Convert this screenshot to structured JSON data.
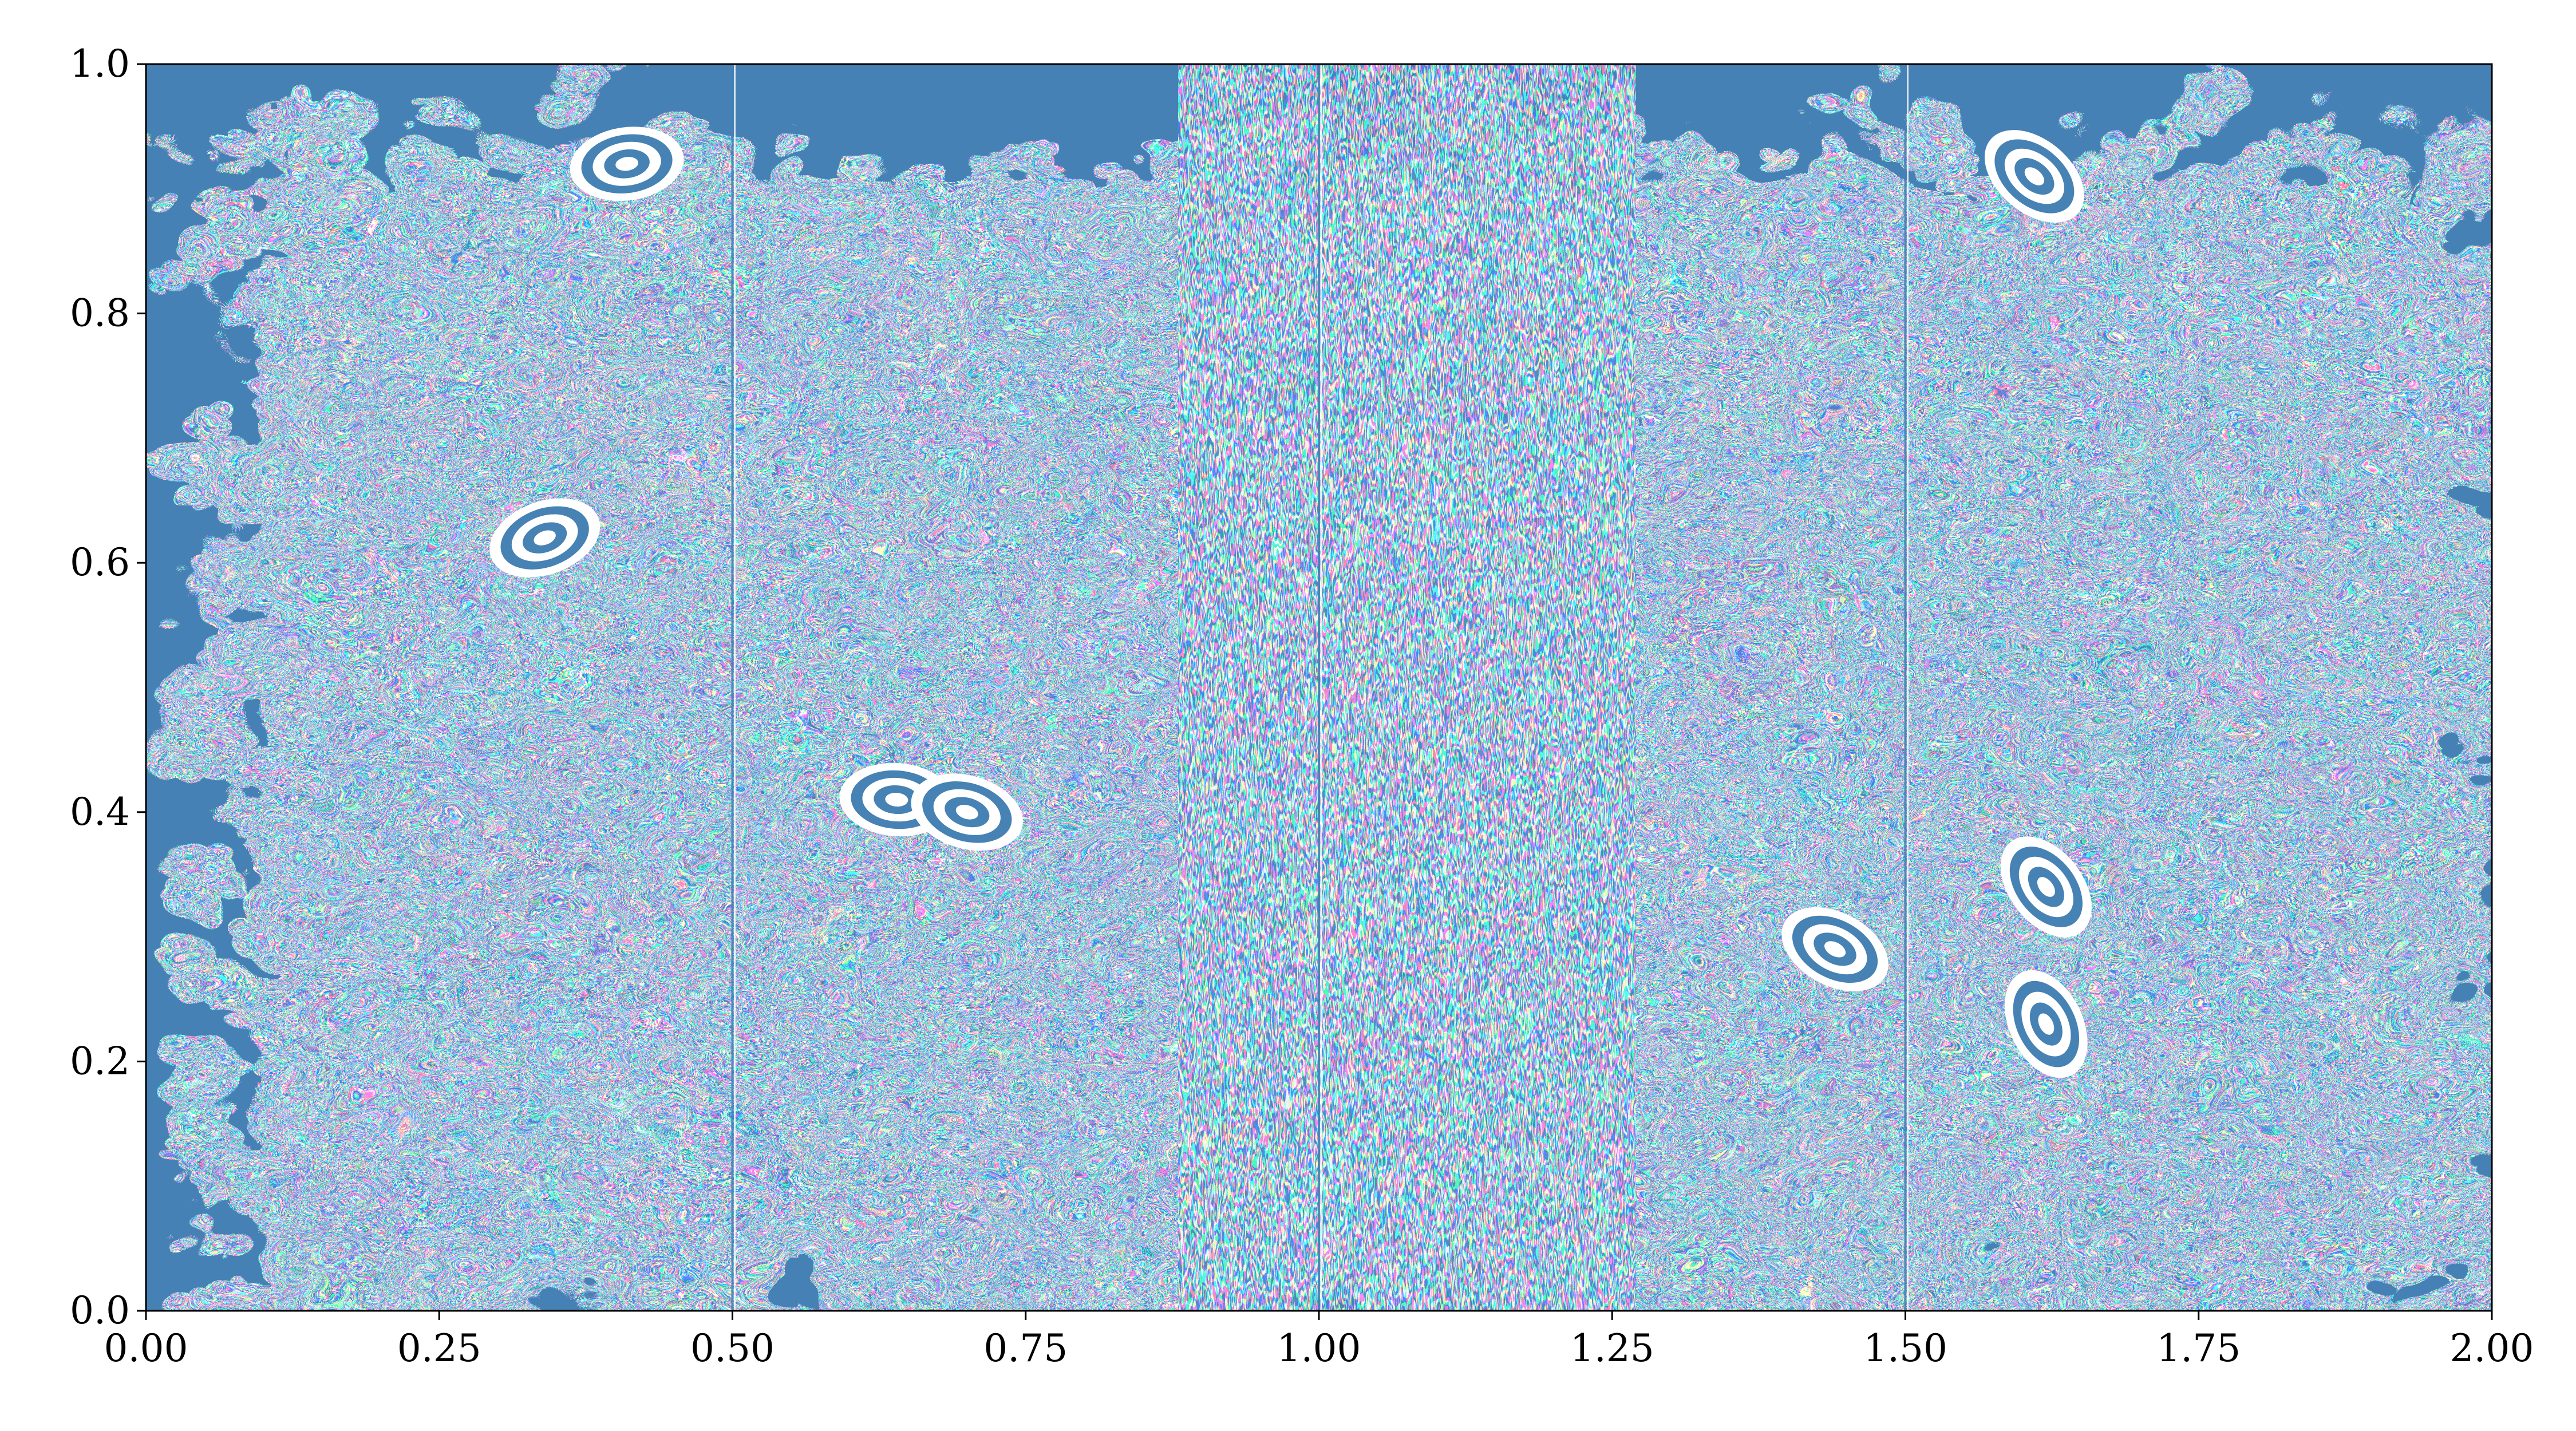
{
  "chart_data": {
    "type": "heatmap",
    "title": "",
    "xlabel": "",
    "ylabel": "",
    "xlim": [
      0,
      2
    ],
    "ylim": [
      0,
      1
    ],
    "x_ticks": [
      "0.00",
      "0.25",
      "0.50",
      "0.75",
      "1.00",
      "1.25",
      "1.50",
      "1.75",
      "2.00"
    ],
    "x_tick_values": [
      0,
      0.25,
      0.5,
      0.75,
      1.0,
      1.25,
      1.5,
      1.75,
      2.0
    ],
    "y_ticks": [
      "0.0",
      "0.2",
      "0.4",
      "0.6",
      "0.8",
      "1.0"
    ],
    "y_tick_values": [
      0,
      0.2,
      0.4,
      0.6,
      0.8,
      1.0
    ],
    "grid": false,
    "colors": {
      "field": "#4682b4",
      "background": "#ffffff"
    },
    "vertical_seams_x": [
      0.5,
      1.0,
      1.5
    ],
    "notable_regions": [
      {
        "name": "eye",
        "x": 0.34,
        "y": 0.62
      },
      {
        "name": "eye",
        "x": 0.41,
        "y": 0.92
      },
      {
        "name": "eye",
        "x": 0.64,
        "y": 0.41
      },
      {
        "name": "eye",
        "x": 0.7,
        "y": 0.4
      },
      {
        "name": "eye",
        "x": 1.44,
        "y": 0.29
      },
      {
        "name": "eye",
        "x": 1.61,
        "y": 0.91
      },
      {
        "name": "eye",
        "x": 1.62,
        "y": 0.34
      },
      {
        "name": "eye",
        "x": 1.62,
        "y": 0.23
      }
    ]
  }
}
